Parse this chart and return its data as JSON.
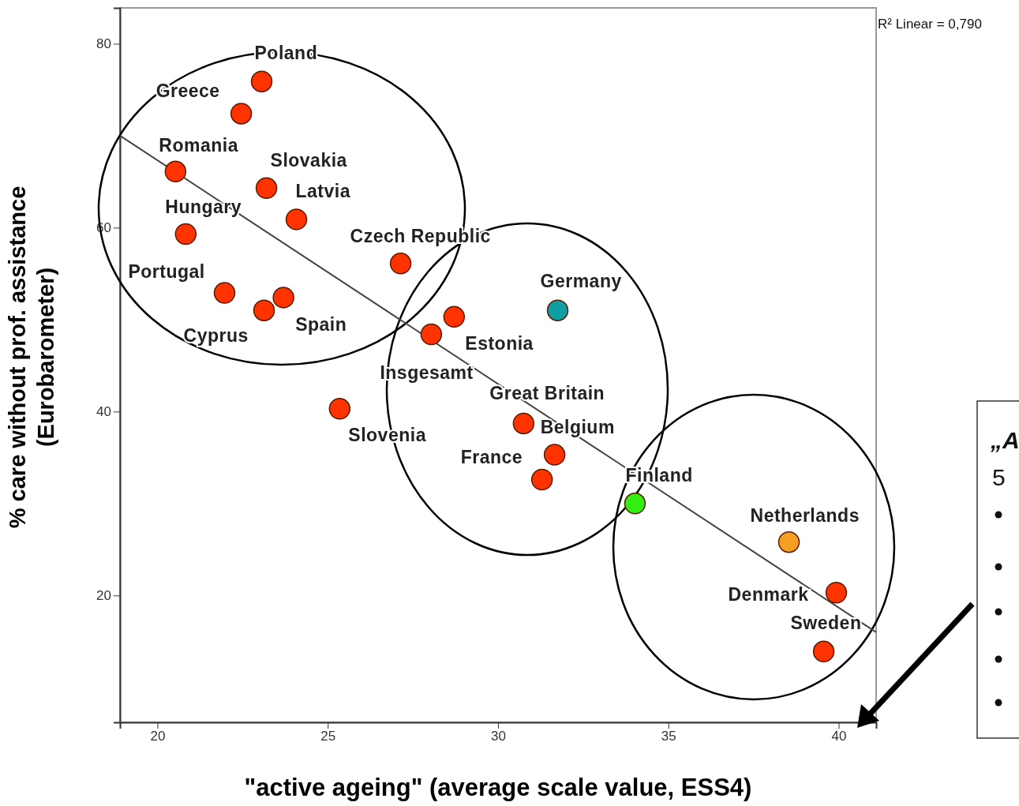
{
  "chart_data": {
    "type": "scatter",
    "xlabel": "\"active ageing\" (average scale value, ESS4)",
    "ylabel": "% care without prof. assistance\n(Eurobarometer)",
    "xlim": [
      18.9,
      41.1
    ],
    "ylim": [
      6.2,
      83.9
    ],
    "xticks": [
      20,
      25,
      30,
      35,
      40
    ],
    "yticks": [
      20,
      40,
      60,
      80
    ],
    "grid": false,
    "series": [
      {
        "marker": "circle",
        "x": [
          23.06,
          22.46,
          20.53,
          23.2,
          24.08,
          20.83,
          27.14,
          21.97,
          23.13,
          23.7,
          28.71,
          28.04,
          31.75,
          25.35,
          30.75,
          31.66,
          31.29,
          34.02,
          38.54,
          39.93,
          39.56
        ],
        "values": [
          75.9,
          72.4,
          66.1,
          64.3,
          60.9,
          59.3,
          56.1,
          52.9,
          51.0,
          52.4,
          50.3,
          48.4,
          51.0,
          40.3,
          38.7,
          35.3,
          32.6,
          30.0,
          25.8,
          20.3,
          13.9
        ],
        "colors": [
          "#ff3300",
          "#ff3300",
          "#ff3300",
          "#ff3300",
          "#ff3300",
          "#ff3300",
          "#ff3300",
          "#ff3300",
          "#ff3300",
          "#ff3300",
          "#ff3300",
          "#ff3300",
          "#119ea3",
          "#ff3300",
          "#ff3300",
          "#ff3300",
          "#ff3300",
          "#33ee11",
          "#f5a024",
          "#ff3300",
          "#ff3300"
        ]
      },
      {
        "type": "line",
        "x": [
          18.9,
          41.1
        ],
        "values": [
          70.0,
          16.0
        ],
        "color": "#444444",
        "line_style": "solid",
        "marker": "none"
      }
    ],
    "annotations": [
      {
        "text": "Poland",
        "x": 23.06,
        "y": 75.9
      },
      {
        "text": "Greece",
        "x": 22.46,
        "y": 72.4
      },
      {
        "text": "Romania",
        "x": 20.53,
        "y": 66.1
      },
      {
        "text": "Slovakia",
        "x": 23.2,
        "y": 64.3
      },
      {
        "text": "Latvia",
        "x": 24.08,
        "y": 60.9
      },
      {
        "text": "Hungary",
        "x": 20.83,
        "y": 59.3
      },
      {
        "text": "Czech Republic",
        "x": 27.14,
        "y": 56.1
      },
      {
        "text": "Portugal",
        "x": 21.97,
        "y": 52.9
      },
      {
        "text": "Cyprus",
        "x": 23.13,
        "y": 51.0
      },
      {
        "text": "Spain",
        "x": 23.7,
        "y": 52.4
      },
      {
        "text": "Estonia",
        "x": 28.71,
        "y": 50.3
      },
      {
        "text": "Insgesamt",
        "x": 28.04,
        "y": 48.4
      },
      {
        "text": "Germany",
        "x": 31.75,
        "y": 51.0
      },
      {
        "text": "Slovenia",
        "x": 25.35,
        "y": 40.3
      },
      {
        "text": "Great Britain",
        "x": 30.75,
        "y": 38.7
      },
      {
        "text": "Belgium",
        "x": 31.66,
        "y": 35.3
      },
      {
        "text": "France",
        "x": 31.29,
        "y": 32.6
      },
      {
        "text": "Finland",
        "x": 34.02,
        "y": 30.0
      },
      {
        "text": "Netherlands",
        "x": 38.54,
        "y": 25.8
      },
      {
        "text": "Denmark",
        "x": 39.93,
        "y": 20.3
      },
      {
        "text": "Sweden",
        "x": 39.56,
        "y": 13.9
      },
      "R² Linear = 0,790",
      "„A",
      "5"
    ]
  }
}
